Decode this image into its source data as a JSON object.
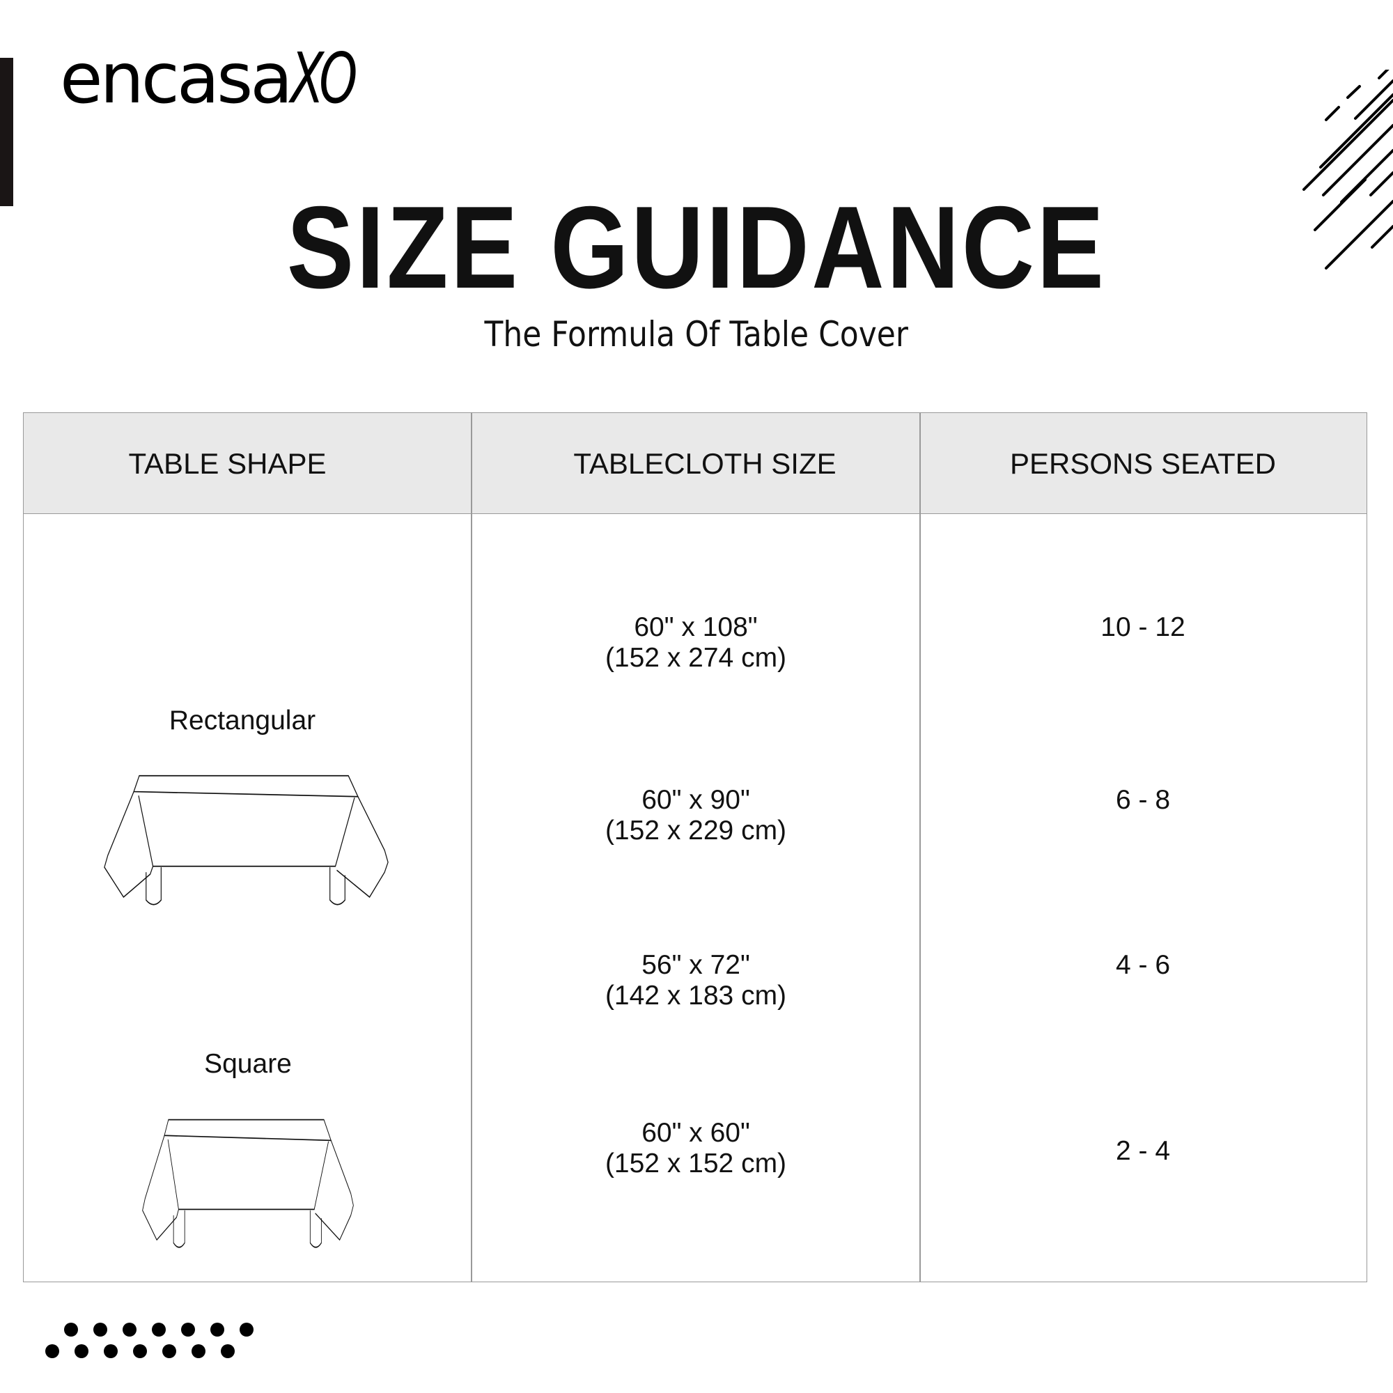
{
  "brand": {
    "name": "encasa",
    "suffix": "XO"
  },
  "header": {
    "title": "SIZE GUIDANCE",
    "subtitle": "The Formula Of Table Cover"
  },
  "table": {
    "columns": [
      "TABLE SHAPE",
      "TABLECLOTH SIZE",
      "PERSONS SEATED"
    ],
    "shapes": [
      {
        "label": "Rectangular",
        "icon": "rectangular-table-icon"
      },
      {
        "label": "Square",
        "icon": "square-table-icon"
      }
    ],
    "rows": [
      {
        "size_in": "60\" x 108\"",
        "size_cm": "(152 x 274 cm)",
        "persons": "10 - 12"
      },
      {
        "size_in": "60\" x 90\"",
        "size_cm": "(152 x 229 cm)",
        "persons": "6 - 8"
      },
      {
        "size_in": "56\" x 72\"",
        "size_cm": "(142 x 183 cm)",
        "persons": "4 - 6"
      },
      {
        "size_in": "60\" x 60\"",
        "size_cm": "(152 x 152 cm)",
        "persons": "2 - 4"
      }
    ]
  },
  "colors": {
    "header_bg": "#e9e9e9",
    "border": "#999999",
    "text": "#111111"
  }
}
